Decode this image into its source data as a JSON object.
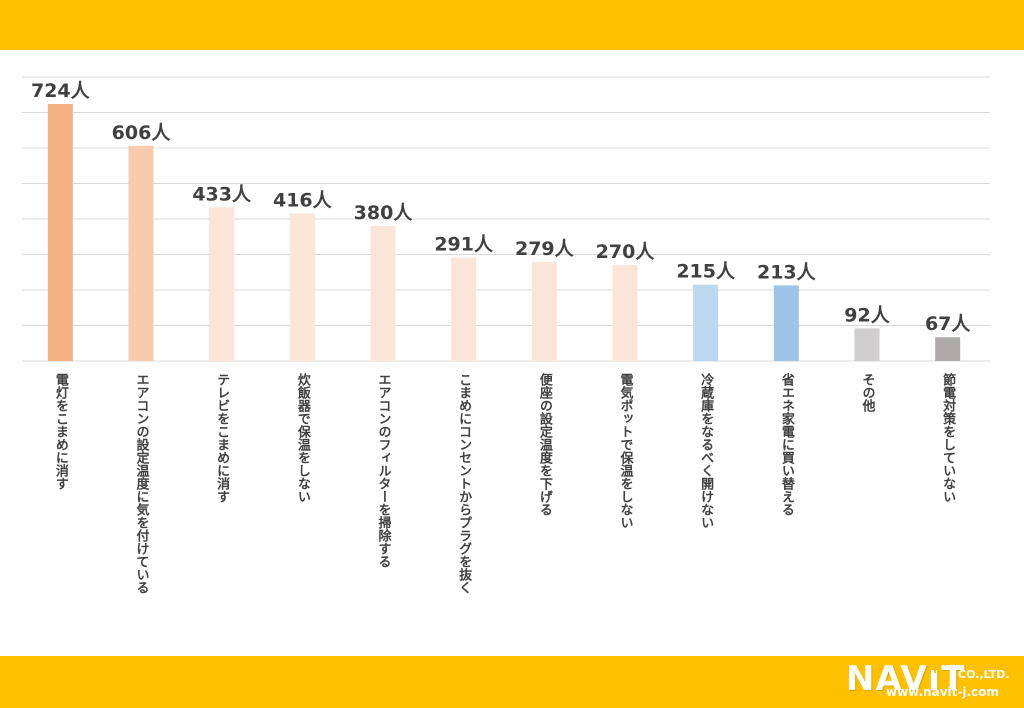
{
  "colors": {
    "band": "#FFC000",
    "grid": "#D9D9D9",
    "text": "#404040"
  },
  "logo": {
    "brand": "NAVIT",
    "suffix": "CO.,LTD.",
    "url": "www.navit-j.com",
    "icon": "plug-icon"
  },
  "chart_data": {
    "type": "bar",
    "categories": [
      "電灯をこまめに消す",
      "エアコンの設定温度に気を付けている",
      "テレビをこまめに消す",
      "炊飯器で保温をしない",
      "エアコンのフィルターを掃除する",
      "こまめにコンセントからプラグを抜く",
      "便座の設定温度を下げる",
      "電気ポットで保温をしない",
      "冷蔵庫をなるべく開けない",
      "省エネ家電に買い替える",
      "その他",
      "節電対策をしていない"
    ],
    "values": [
      724,
      606,
      433,
      416,
      380,
      291,
      279,
      270,
      215,
      213,
      92,
      67
    ],
    "value_labels": [
      "724人",
      "606人",
      "433人",
      "416人",
      "380人",
      "291人",
      "279人",
      "270人",
      "215人",
      "213人",
      "92人",
      "67人"
    ],
    "bar_colors": [
      "#F4B183",
      "#F8CBAD",
      "#FBE5D6",
      "#FBE5D6",
      "#FBE5D6",
      "#FBE5D6",
      "#FBE5D6",
      "#FBE5D6",
      "#BDD7EE",
      "#9DC3E6",
      "#D0CECE",
      "#AEAAAA"
    ],
    "title": "",
    "xlabel": "",
    "ylabel": "",
    "ylim": [
      0,
      800
    ],
    "grid": true,
    "gridlines": 8
  }
}
